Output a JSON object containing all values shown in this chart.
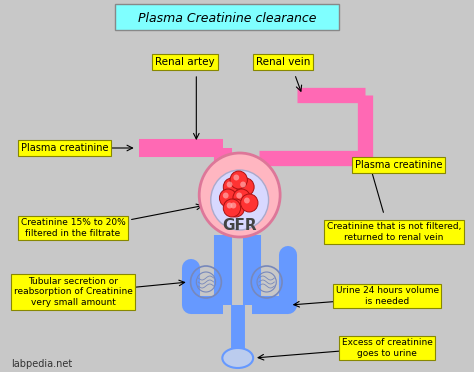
{
  "title": "Plasma Creatinine clearance",
  "bg_color": "#c8c8c8",
  "title_box_color": "#7fffff",
  "label_box_color": "#ffff00",
  "labels": {
    "renal_artery": "Renal artey",
    "renal_vein": "Renal vein",
    "plasma_creatinine_left": "Plasma creatinine",
    "plasma_creatinine_right": "Plasma creatinine",
    "gfr": "GFR",
    "creatinine_filtrate": "Creatinine 15% to 20%\nfiltered in the filtrate",
    "tubular": "Tubular secretion or\nreabsorption of Creatinine\nvery small amount",
    "not_filtered": "Creatinine that is not filtered,\nreturned to renal vein",
    "urine_volume": "Urine 24 hours volume\nis needed",
    "excess_urine": "Excess of creatinine\ngoes to urine",
    "watermark": "labpedia.net"
  },
  "colors": {
    "pink_vessel": "#ff69b4",
    "blue_vessel": "#6699ff",
    "glomerulus_outer": "#ffb6c1",
    "glomerulus_inner": "#d8d8ff",
    "glomerulus_balls": "#ff3333",
    "tubule_sketch": "#8899cc"
  }
}
